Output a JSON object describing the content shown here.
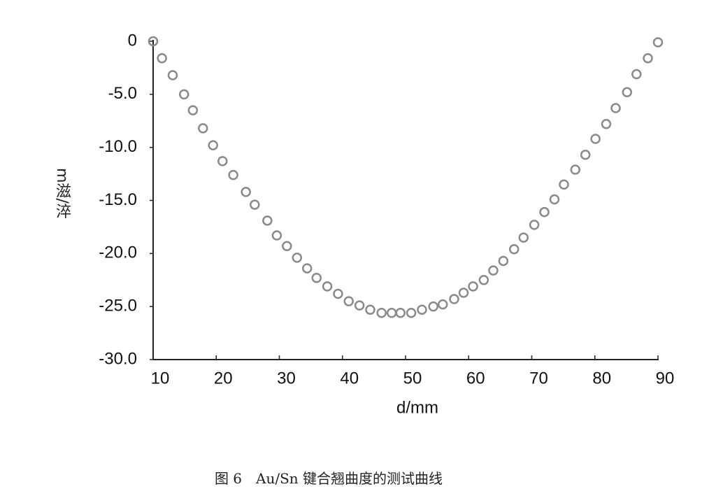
{
  "chart_data": {
    "type": "scatter",
    "x_label": "d/mm",
    "y_label": "m滋/淬",
    "caption": "图 6　Au/Sn 键合翘曲度的测试曲线",
    "color": "#8a8a8a",
    "x": [
      10,
      11.4,
      13.1,
      14.9,
      16.3,
      17.9,
      19.5,
      21.0,
      22.7,
      24.7,
      26.1,
      28.1,
      29.6,
      31.2,
      32.8,
      34.4,
      35.9,
      37.6,
      39.3,
      41.0,
      42.7,
      44.4,
      46.2,
      47.8,
      49.2,
      50.9,
      52.6,
      54.4,
      55.9,
      57.7,
      59.2,
      60.7,
      62.4,
      63.9,
      65.5,
      67.2,
      68.7,
      70.4,
      72.0,
      73.6,
      75.1,
      76.9,
      78.5,
      80.1,
      81.8,
      83.3,
      85.1,
      86.6,
      88.4,
      90.0
    ],
    "values": [
      0,
      -1.6,
      -3.2,
      -5.0,
      -6.5,
      -8.2,
      -9.8,
      -11.3,
      -12.6,
      -14.2,
      -15.4,
      -16.9,
      -18.3,
      -19.3,
      -20.4,
      -21.4,
      -22.3,
      -23.1,
      -23.8,
      -24.5,
      -24.9,
      -25.3,
      -25.6,
      -25.6,
      -25.6,
      -25.6,
      -25.3,
      -25.0,
      -24.8,
      -24.3,
      -23.7,
      -23.1,
      -22.5,
      -21.6,
      -20.7,
      -19.6,
      -18.5,
      -17.3,
      -16.1,
      -14.9,
      -13.5,
      -12.1,
      -10.7,
      -9.2,
      -7.8,
      -6.3,
      -4.8,
      -3.1,
      -1.6,
      -0.1
    ],
    "xlim": [
      10,
      90
    ],
    "xticks": [
      10,
      20,
      30,
      40,
      50,
      60,
      70,
      80,
      90
    ],
    "ylim": [
      -30,
      0
    ],
    "yticks": [
      0,
      {
        "value": -5,
        "label": "-5.0"
      },
      {
        "value": -10,
        "label": "-10.0"
      },
      {
        "value": -15,
        "label": "-15.0"
      },
      {
        "value": -20,
        "label": "-20.0"
      },
      {
        "value": -25,
        "label": "-25.0"
      },
      {
        "value": -30,
        "label": "-30.0"
      }
    ]
  }
}
